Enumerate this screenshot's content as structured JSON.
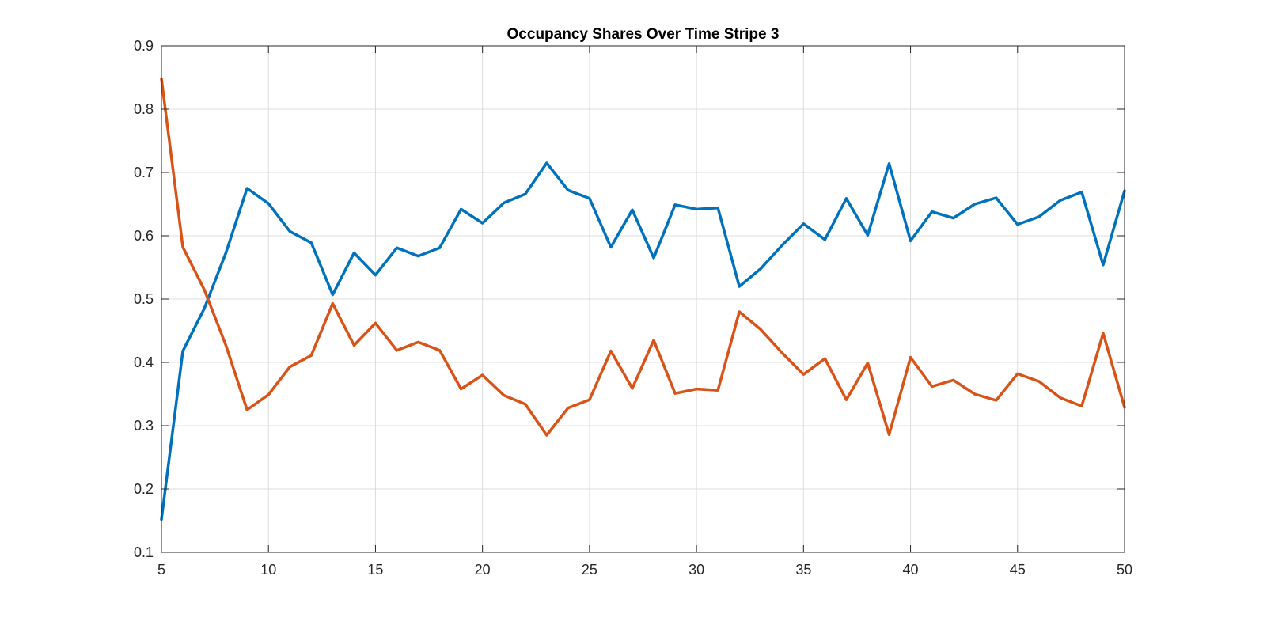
{
  "chart_data": {
    "type": "line",
    "title": "Occupancy Shares Over Time Stripe 3",
    "xlabel": "",
    "ylabel": "",
    "xlim": [
      5,
      50
    ],
    "ylim": [
      0.1,
      0.9
    ],
    "xticks": [
      5,
      10,
      15,
      20,
      25,
      30,
      35,
      40,
      45,
      50
    ],
    "yticks": [
      0.1,
      0.2,
      0.3,
      0.4,
      0.5,
      0.6,
      0.7,
      0.8,
      0.9
    ],
    "grid": true,
    "legend": "none",
    "x": [
      5,
      6,
      7,
      8,
      9,
      10,
      11,
      12,
      13,
      14,
      15,
      16,
      17,
      18,
      19,
      20,
      21,
      22,
      23,
      24,
      25,
      26,
      27,
      28,
      29,
      30,
      31,
      32,
      33,
      34,
      35,
      36,
      37,
      38,
      39,
      40,
      41,
      42,
      43,
      44,
      45,
      46,
      47,
      48,
      49,
      50
    ],
    "series": [
      {
        "color": "#0072bd",
        "values": [
          0.152,
          0.418,
          0.485,
          0.572,
          0.675,
          0.651,
          0.607,
          0.589,
          0.507,
          0.573,
          0.538,
          0.581,
          0.568,
          0.581,
          0.642,
          0.62,
          0.652,
          0.666,
          0.715,
          0.672,
          0.659,
          0.582,
          0.641,
          0.565,
          0.649,
          0.642,
          0.644,
          0.52,
          0.548,
          0.585,
          0.619,
          0.594,
          0.659,
          0.601,
          0.714,
          0.592,
          0.638,
          0.628,
          0.65,
          0.66,
          0.618,
          0.63,
          0.656,
          0.669,
          0.554,
          0.671
        ]
      },
      {
        "color": "#d95319",
        "values": [
          0.848,
          0.582,
          0.515,
          0.428,
          0.325,
          0.349,
          0.393,
          0.411,
          0.493,
          0.427,
          0.462,
          0.419,
          0.432,
          0.419,
          0.358,
          0.38,
          0.348,
          0.334,
          0.285,
          0.328,
          0.341,
          0.418,
          0.359,
          0.435,
          0.351,
          0.358,
          0.356,
          0.48,
          0.452,
          0.415,
          0.381,
          0.406,
          0.341,
          0.399,
          0.286,
          0.408,
          0.362,
          0.372,
          0.35,
          0.34,
          0.382,
          0.37,
          0.344,
          0.331,
          0.446,
          0.329
        ]
      }
    ]
  }
}
